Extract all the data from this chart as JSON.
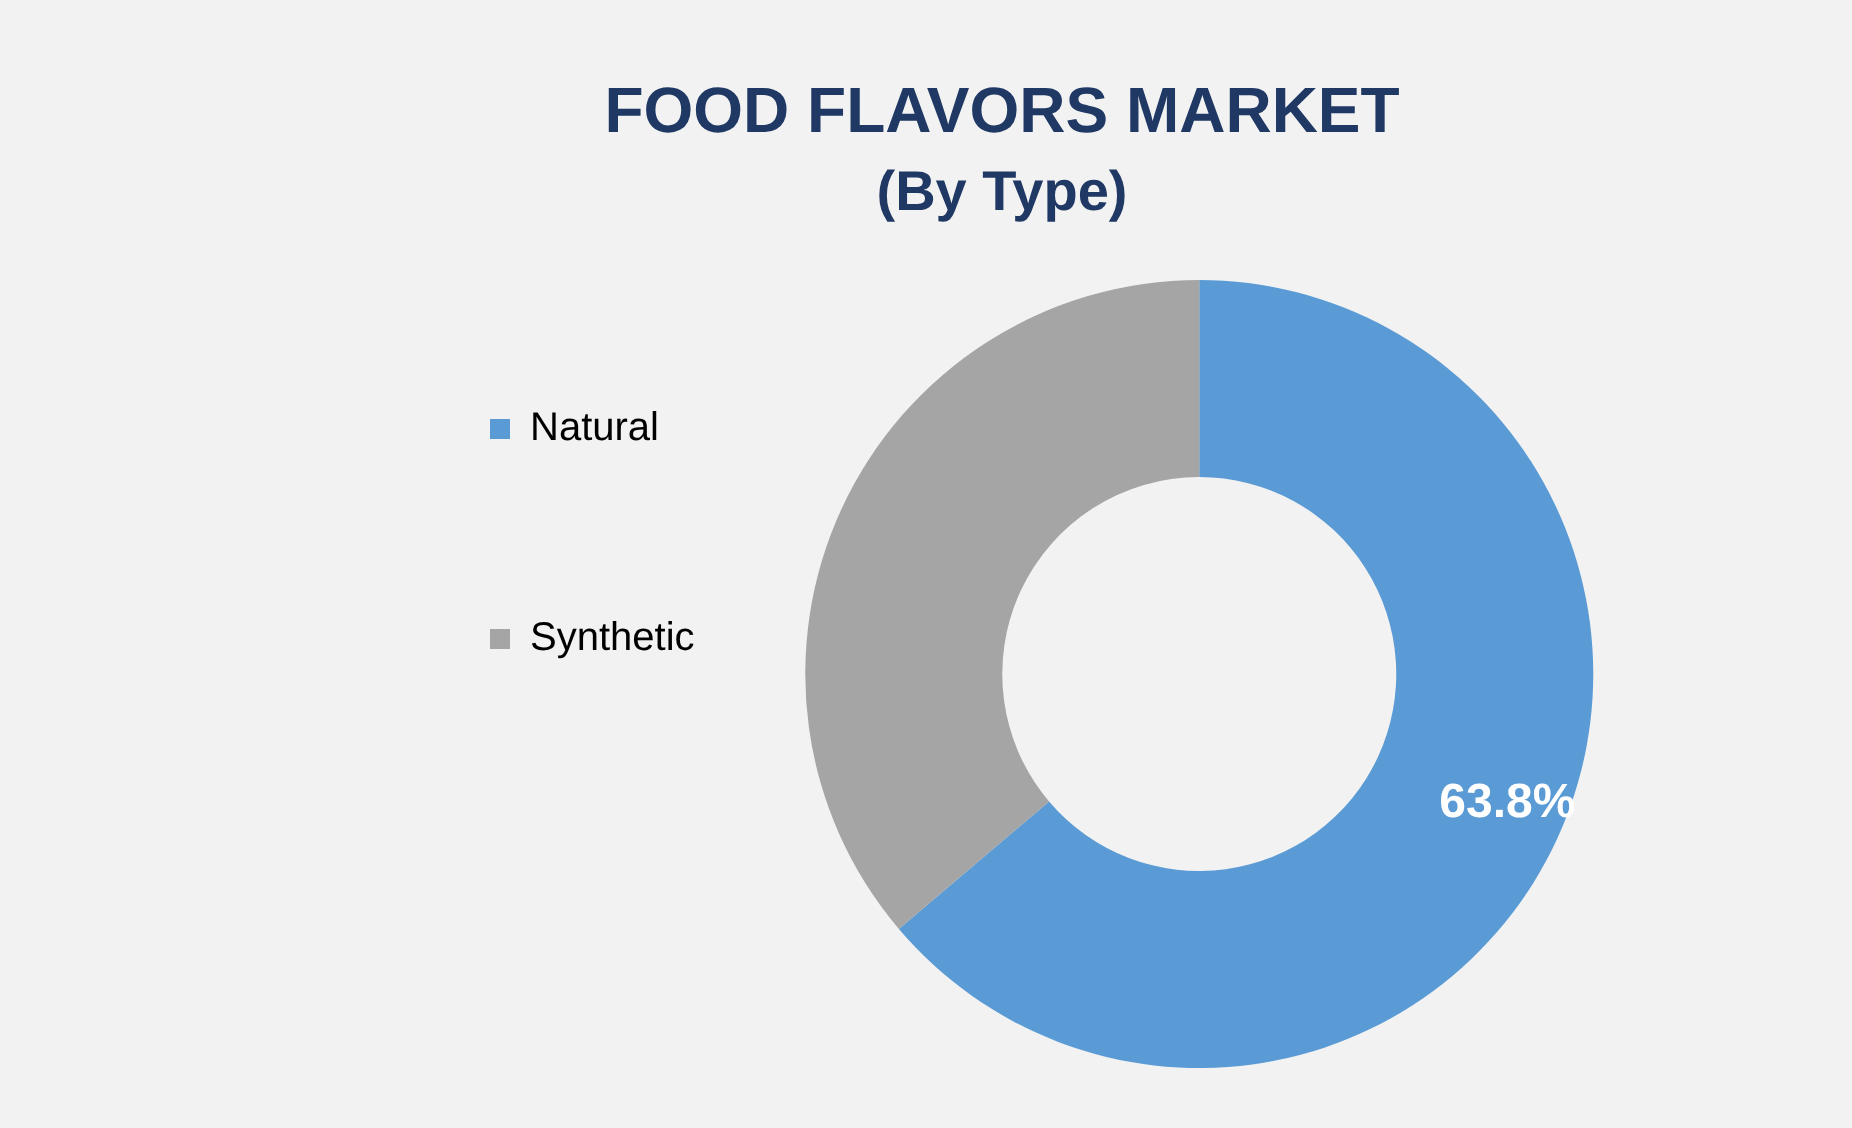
{
  "chart_data": {
    "type": "donut",
    "title": "FOOD FLAVORS MARKET",
    "subtitle": "(By Type)",
    "categories": [
      "Natural",
      "Synthetic"
    ],
    "values": [
      63.8,
      36.2
    ],
    "colors": [
      "#5b9bd5",
      "#a5a5a5"
    ],
    "value_labels": [
      "63.8%",
      null
    ],
    "legend": "left"
  }
}
